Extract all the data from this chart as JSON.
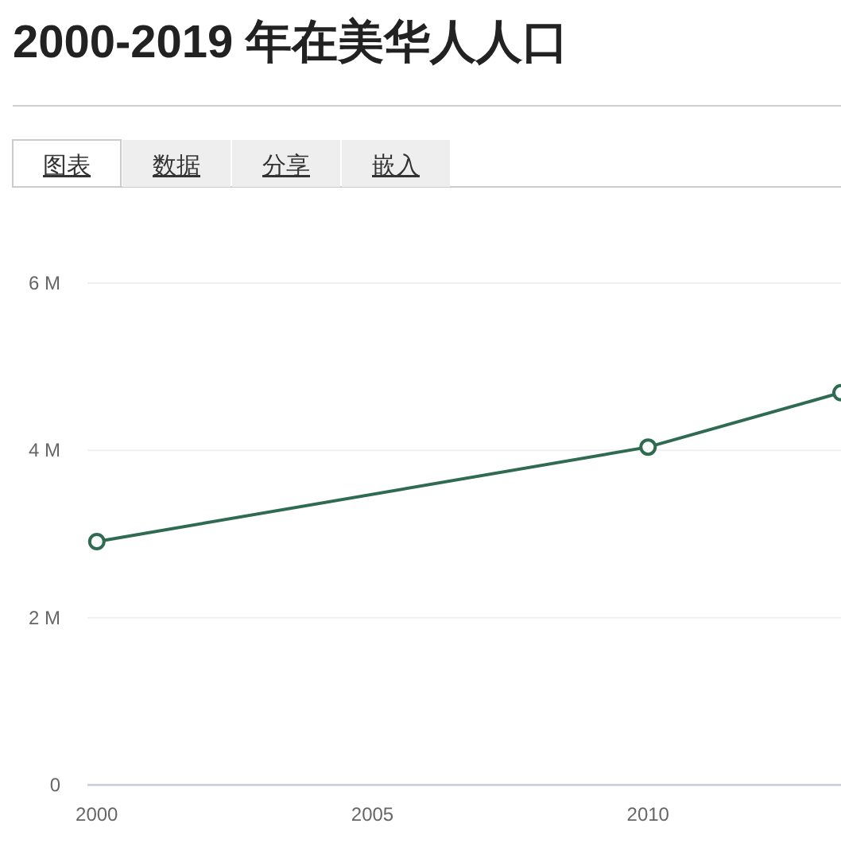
{
  "chart_data": {
    "type": "line",
    "title": "2000-2019 年在美华人人口",
    "annotations": [
      "图表",
      "数据",
      "分享",
      "嵌入"
    ],
    "x": [
      2000,
      2010,
      2013.5
    ],
    "series": [
      {
        "color": "#2f6b50",
        "values": [
          2.91,
          4.04,
          4.69
        ]
      }
    ],
    "xlim": [
      1999.83,
      2013.5
    ],
    "xticks": [
      2000,
      2005,
      2010
    ],
    "ylim": [
      0,
      6
    ],
    "yticks": [
      0,
      {
        "value": 2,
        "label": "2 M"
      },
      {
        "value": 4,
        "label": "4 M"
      },
      {
        "value": 6,
        "label": "6 M"
      }
    ],
    "grid": "y",
    "marker": "circle",
    "line_style": "solid"
  }
}
